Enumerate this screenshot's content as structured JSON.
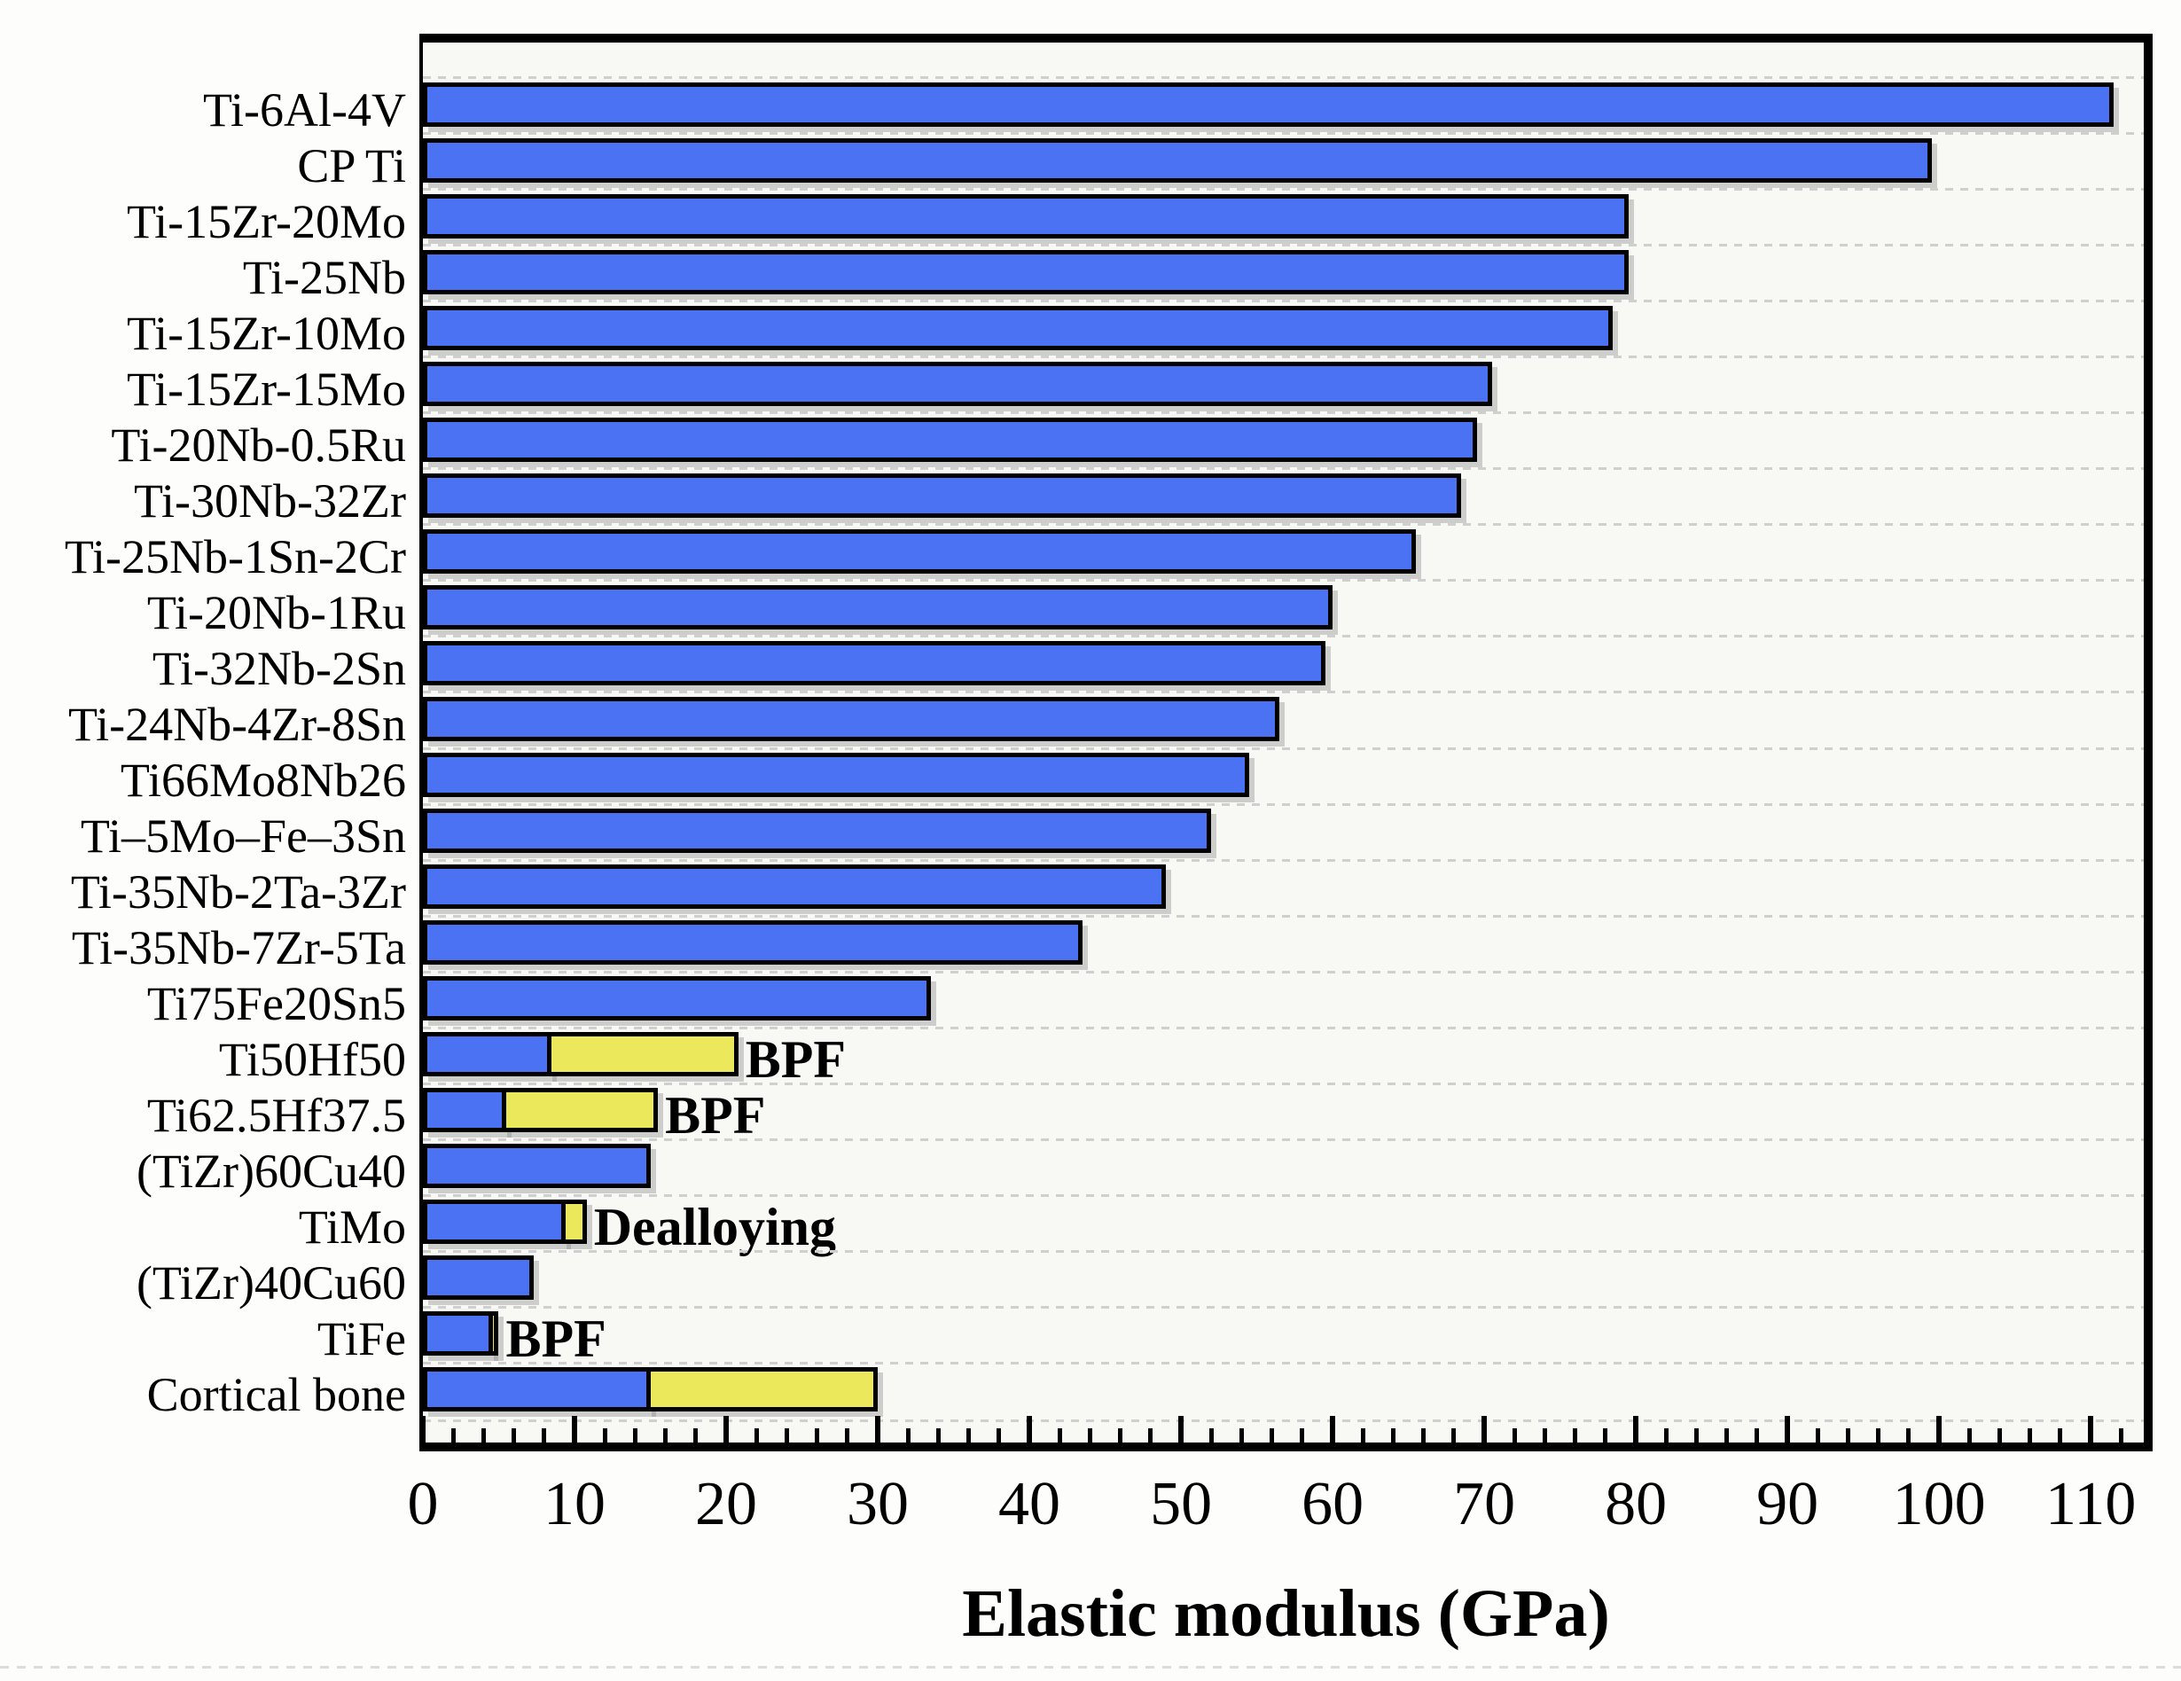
{
  "chart_data": {
    "type": "bar",
    "orientation": "horizontal",
    "title": "",
    "xlabel": "Elastic modulus (GPa)",
    "ylabel": "",
    "xlim": [
      0,
      113.5
    ],
    "x_major_ticks": [
      0,
      10,
      20,
      30,
      40,
      50,
      60,
      70,
      80,
      90,
      100,
      110
    ],
    "x_minor_tick_step": 2,
    "grid": "dashed-horizontal-between-rows",
    "legend_position": "none",
    "categories": [
      "Ti-6Al-4V",
      "CP Ti",
      "Ti-15Zr-20Mo",
      "Ti-25Nb",
      "Ti-15Zr-10Mo",
      "Ti-15Zr-15Mo",
      "Ti-20Nb-0.5Ru",
      "Ti-30Nb-32Zr",
      "Ti-25Nb-1Sn-2Cr",
      "Ti-20Nb-1Ru",
      "Ti-32Nb-2Sn",
      "Ti-24Nb-4Zr-8Sn",
      "Ti66Mo8Nb26",
      "Ti–5Mo–Fe–3Sn",
      "Ti-35Nb-2Ta-3Zr",
      "Ti-35Nb-7Zr-5Ta",
      "Ti75Fe20Sn5",
      "Ti50Hf50",
      "Ti62.5Hf37.5",
      "(TiZr)60Cu40",
      "TiMo",
      "(TiZr)40Cu60",
      "TiFe",
      "Cortical bone"
    ],
    "bars": [
      {
        "label": "Ti-6Al-4V",
        "value": 111.5,
        "range": null,
        "annotation": ""
      },
      {
        "label": "CP Ti",
        "value": 99.5,
        "range": null,
        "annotation": ""
      },
      {
        "label": "Ti-15Zr-20Mo",
        "value": 79.5,
        "range": null,
        "annotation": ""
      },
      {
        "label": "Ti-25Nb",
        "value": 79.5,
        "range": null,
        "annotation": ""
      },
      {
        "label": "Ti-15Zr-10Mo",
        "value": 78.5,
        "range": null,
        "annotation": ""
      },
      {
        "label": "Ti-15Zr-15Mo",
        "value": 70.5,
        "range": null,
        "annotation": ""
      },
      {
        "label": "Ti-20Nb-0.5Ru",
        "value": 69.5,
        "range": null,
        "annotation": ""
      },
      {
        "label": "Ti-30Nb-32Zr",
        "value": 68.5,
        "range": null,
        "annotation": ""
      },
      {
        "label": "Ti-25Nb-1Sn-2Cr",
        "value": 65.5,
        "range": null,
        "annotation": ""
      },
      {
        "label": "Ti-20Nb-1Ru",
        "value": 60,
        "range": null,
        "annotation": ""
      },
      {
        "label": "Ti-32Nb-2Sn",
        "value": 59.5,
        "range": null,
        "annotation": ""
      },
      {
        "label": "Ti-24Nb-4Zr-8Sn",
        "value": 56.5,
        "range": null,
        "annotation": ""
      },
      {
        "label": "Ti66Mo8Nb26",
        "value": 54.5,
        "range": null,
        "annotation": ""
      },
      {
        "label": "Ti–5Mo–Fe–3Sn",
        "value": 52,
        "range": null,
        "annotation": ""
      },
      {
        "label": "Ti-35Nb-2Ta-3Zr",
        "value": 49,
        "range": null,
        "annotation": ""
      },
      {
        "label": "Ti-35Nb-7Zr-5Ta",
        "value": 43.5,
        "range": null,
        "annotation": ""
      },
      {
        "label": "Ti75Fe20Sn5",
        "value": 33.5,
        "range": null,
        "annotation": ""
      },
      {
        "label": "Ti50Hf50",
        "value": 8.5,
        "range": [
          8.5,
          20.8
        ],
        "annotation": "BPF"
      },
      {
        "label": "Ti62.5Hf37.5",
        "value": 5.5,
        "range": [
          5.5,
          15.5
        ],
        "annotation": "BPF"
      },
      {
        "label": "(TiZr)60Cu40",
        "value": 15,
        "range": null,
        "annotation": ""
      },
      {
        "label": "TiMo",
        "value": 9.4,
        "range": [
          9.4,
          10.8
        ],
        "annotation": "Dealloying"
      },
      {
        "label": "(TiZr)40Cu60",
        "value": 7.3,
        "range": null,
        "annotation": ""
      },
      {
        "label": "TiFe",
        "value": 4.6,
        "range": [
          4.6,
          5.0
        ],
        "annotation": "BPF"
      },
      {
        "label": "Cortical bone",
        "value": 15,
        "range": [
          15,
          30
        ],
        "annotation": ""
      }
    ]
  },
  "colors": {
    "bar_blue": "#4a72f3",
    "range_yellow": "#ece85b",
    "bar_border": "#000000",
    "frame": "#000000",
    "gridline": "#cfcfcf",
    "figure_background": "#fdfdfb",
    "plot_background": "#f8f8f5"
  }
}
